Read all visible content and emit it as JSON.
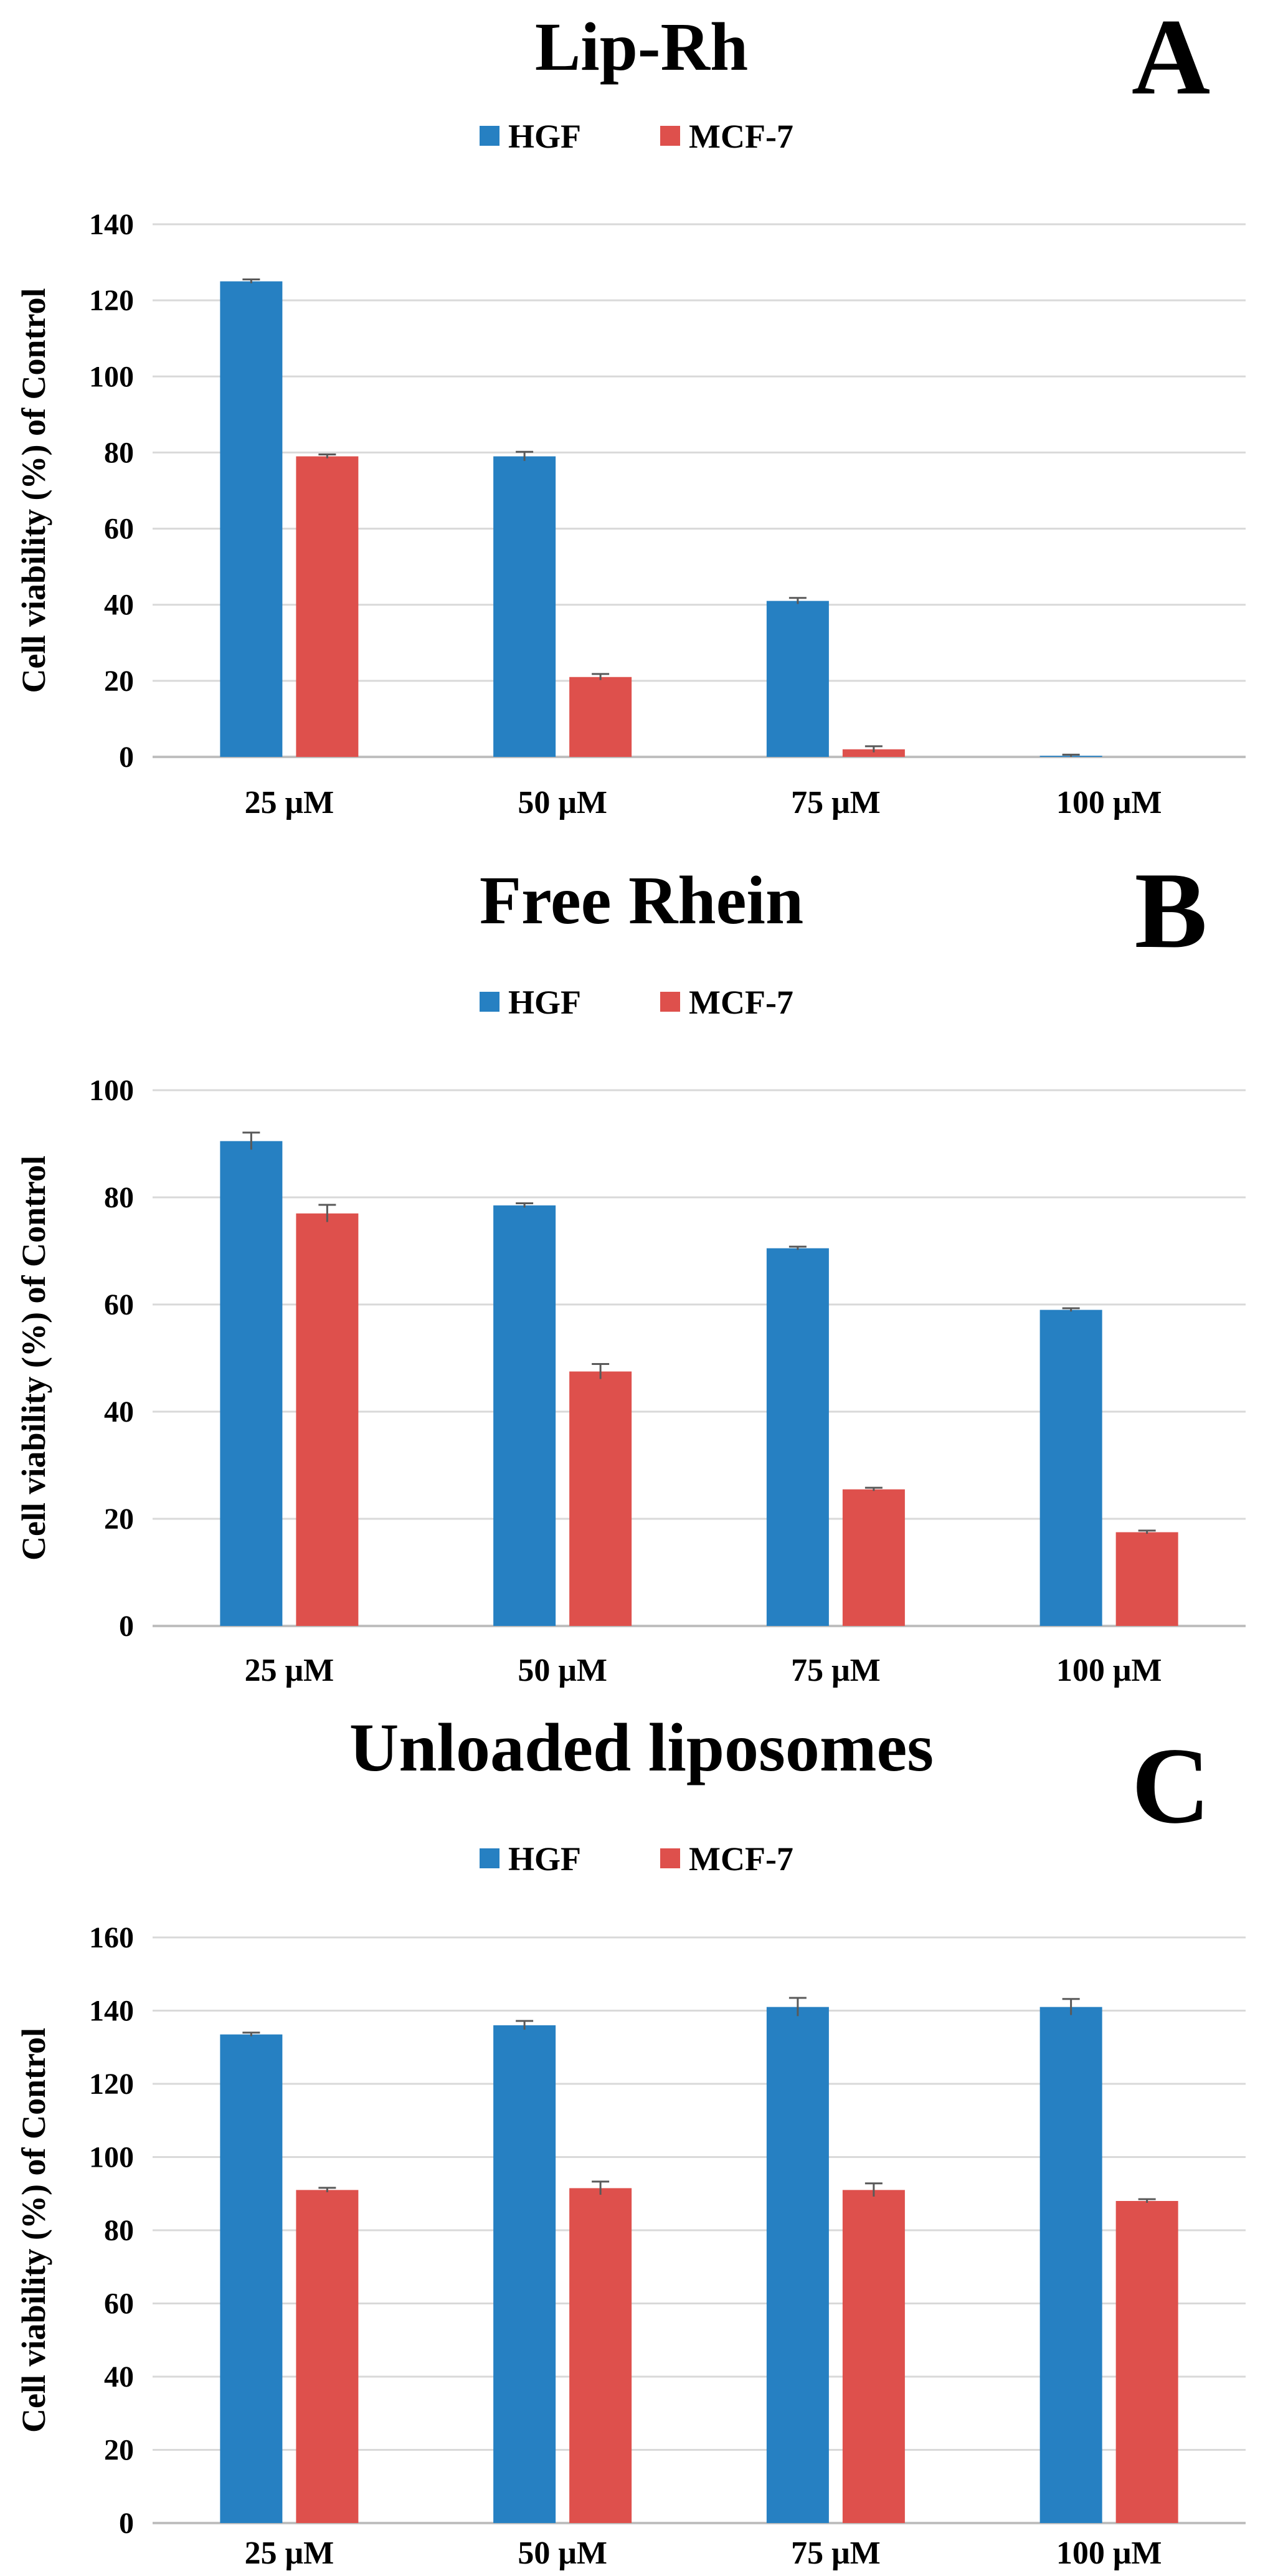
{
  "colors": {
    "HGF": "#2680C2",
    "MCF-7": "#DE504C",
    "grid": "#d9d9d9",
    "axis": "#bfbfbf",
    "error": "#595959"
  },
  "chart_data": [
    {
      "panel": "A",
      "type": "bar",
      "title": "Lip-Rh",
      "ylabel": "Cell viability (%) of Control",
      "xlabel": "",
      "ylim": [
        0,
        140
      ],
      "yticks": [
        0,
        20,
        40,
        60,
        80,
        100,
        120,
        140
      ],
      "categories": [
        "25 μM",
        "50 μM",
        "75 μM",
        "100 μM"
      ],
      "legend": "top-center",
      "series": [
        {
          "name": "HGF",
          "values": [
            125,
            79,
            41,
            0.3
          ],
          "errors": [
            0.5,
            1.2,
            0.8,
            0.3
          ]
        },
        {
          "name": "MCF-7",
          "values": [
            79,
            21,
            2,
            0
          ],
          "errors": [
            0.5,
            0.8,
            0.8,
            0
          ]
        }
      ]
    },
    {
      "panel": "B",
      "type": "bar",
      "title": "Free Rhein",
      "ylabel": "Cell viability (%) of Control",
      "xlabel": "",
      "ylim": [
        0,
        100
      ],
      "yticks": [
        0,
        20,
        40,
        60,
        80,
        100
      ],
      "categories": [
        "25 μM",
        "50 μM",
        "75 μM",
        "100 μM"
      ],
      "legend": "top-center",
      "series": [
        {
          "name": "HGF",
          "values": [
            90.5,
            78.5,
            70.5,
            59
          ],
          "errors": [
            1.6,
            0.4,
            0.3,
            0.3
          ]
        },
        {
          "name": "MCF-7",
          "values": [
            77,
            47.5,
            25.5,
            17.5
          ],
          "errors": [
            1.6,
            1.4,
            0.3,
            0.3
          ]
        }
      ]
    },
    {
      "panel": "C",
      "type": "bar",
      "title": "Unloaded liposomes",
      "ylabel": "Cell viability (%) of Control",
      "xlabel": "",
      "ylim": [
        0,
        160
      ],
      "yticks": [
        0,
        20,
        40,
        60,
        80,
        100,
        120,
        140,
        160
      ],
      "categories": [
        "25 μM",
        "50 μM",
        "75 μM",
        "100 μM"
      ],
      "legend": "top-center",
      "series": [
        {
          "name": "HGF",
          "values": [
            133.5,
            136,
            141,
            141
          ],
          "errors": [
            0.5,
            1.2,
            2.5,
            2.2
          ]
        },
        {
          "name": "MCF-7",
          "values": [
            91,
            91.5,
            91,
            88
          ],
          "errors": [
            0.6,
            1.8,
            1.8,
            0.5
          ]
        }
      ]
    }
  ]
}
